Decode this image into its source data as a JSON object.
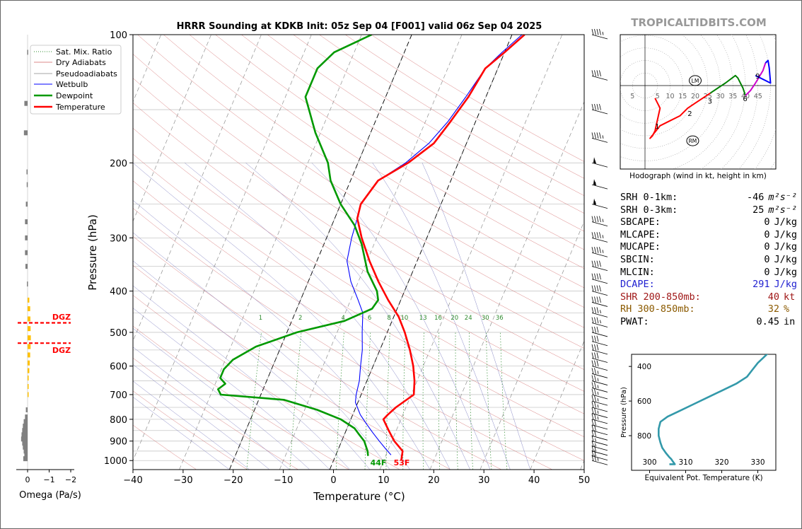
{
  "title": "HRRR Sounding at KDKB Init: 05z Sep 04 [F001] valid 06z Sep 04 2025",
  "site": "TROPICALTIDBITS.COM",
  "main": {
    "xlabel": "Temperature (°C)",
    "ylabel": "Pressure (hPa)",
    "xlim": [
      -40,
      50
    ],
    "ylim": [
      1050,
      100
    ],
    "xticks": [
      "−40",
      "−30",
      "−20",
      "−10",
      "0",
      "10",
      "20",
      "30",
      "40",
      "50"
    ],
    "yticks": [
      "1000",
      "900",
      "800",
      "700",
      "600",
      "500",
      "400",
      "300",
      "200",
      "100"
    ],
    "mixing_ratio_labels": [
      "1",
      "2",
      "4",
      "6",
      "8",
      "10",
      "13",
      "16",
      "20",
      "24",
      "30",
      "36"
    ],
    "sfc_dewpoint_label": "44F",
    "sfc_temp_label": "53F",
    "legend": [
      "Sat. Mix. Ratio",
      "Dry Adiabats",
      "Pseudoadiabats",
      "Wetbulb",
      "Dewpoint",
      "Temperature"
    ],
    "colors": {
      "temperature": "#ff0000",
      "dewpoint": "#009900",
      "wetbulb": "#0000ff",
      "dry_adiabat": "#d06060",
      "moist_adiabat": "#6a6ab8",
      "mixing_ratio": "#2e8b2e",
      "dgz": "#ff0000",
      "omega_up": "#ffc000",
      "omega_down": "#808080"
    }
  },
  "omega": {
    "xlabel": "Omega (Pa/s)",
    "xticks": [
      "0",
      "−1",
      "−2"
    ],
    "dgz_label": "DGZ"
  },
  "hodograph": {
    "caption": "Hodograph (wind in kt, height in km)",
    "ring_labels": [
      "5",
      "5",
      "10",
      "15",
      "20",
      "25",
      "30",
      "35",
      "40",
      "45"
    ],
    "height_labels": [
      "1",
      "2",
      "3",
      "6",
      "9"
    ],
    "lm_label": "LM",
    "rm_label": "RM"
  },
  "theta_e": {
    "xlabel": "Equivalent Pot. Temperature (K)",
    "ylabel": "Pressure (hPa)",
    "xticks": [
      "300",
      "310",
      "320",
      "330"
    ],
    "yticks": [
      "400",
      "600",
      "800"
    ]
  },
  "stats": [
    {
      "label": "SRH 0-1km:",
      "value": "-46",
      "unit": "m²s⁻²",
      "color": "#000000"
    },
    {
      "label": "SRH 0-3km:",
      "value": "25",
      "unit": "m²s⁻²",
      "color": "#000000"
    },
    {
      "label": "SBCAPE:",
      "value": "0",
      "unit": "J/kg",
      "color": "#000000"
    },
    {
      "label": "MLCAPE:",
      "value": "0",
      "unit": "J/kg",
      "color": "#000000"
    },
    {
      "label": "MUCAPE:",
      "value": "0",
      "unit": "J/kg",
      "color": "#000000"
    },
    {
      "label": "SBCIN:",
      "value": "0",
      "unit": "J/kg",
      "color": "#000000"
    },
    {
      "label": "MLCIN:",
      "value": "0",
      "unit": "J/kg",
      "color": "#000000"
    },
    {
      "label": "DCAPE:",
      "value": "291",
      "unit": "J/kg",
      "color": "#1f1fd0"
    },
    {
      "label": "SHR 200-850mb:",
      "value": "40",
      "unit": "kt",
      "color": "#a01818"
    },
    {
      "label": "RH 300-850mb:",
      "value": "32",
      "unit": "%",
      "color": "#8b5a00"
    },
    {
      "label": "PWAT:",
      "value": "0.45",
      "unit": "in",
      "color": "#000000"
    }
  ],
  "chart_data": [
    {
      "type": "line",
      "name": "skew-t",
      "xlim": [
        -40,
        50
      ],
      "ylim": [
        1050,
        100
      ],
      "y_scale": "log",
      "series": [
        {
          "name": "Temperature",
          "points": [
            [
              13.5,
              1000
            ],
            [
              13.0,
              950
            ],
            [
              10.5,
              900
            ],
            [
              8.5,
              850
            ],
            [
              6.5,
              800
            ],
            [
              7.0,
              780
            ],
            [
              8.0,
              750
            ],
            [
              10.5,
              700
            ],
            [
              9.5,
              650
            ],
            [
              8.0,
              600
            ],
            [
              6.0,
              550
            ],
            [
              3.5,
              500
            ],
            [
              1.0,
              460
            ],
            [
              -2.5,
              420
            ],
            [
              -6.0,
              380
            ],
            [
              -9.5,
              340
            ],
            [
              -13.0,
              300
            ],
            [
              -15.5,
              270
            ],
            [
              -16.0,
              250
            ],
            [
              -14.5,
              220
            ],
            [
              -10.0,
              200
            ],
            [
              -6.5,
              180
            ],
            [
              -5.0,
              160
            ],
            [
              -3.5,
              140
            ],
            [
              -2.5,
              120
            ],
            [
              0.0,
              110
            ],
            [
              2.5,
              100
            ]
          ]
        },
        {
          "name": "Dewpoint",
          "points": [
            [
              6.5,
              975
            ],
            [
              6.0,
              950
            ],
            [
              4.5,
              900
            ],
            [
              3.0,
              870
            ],
            [
              1.5,
              840
            ],
            [
              -2.0,
              800
            ],
            [
              -7.5,
              760
            ],
            [
              -15.0,
              720
            ],
            [
              -28.0,
              700
            ],
            [
              -29.0,
              680
            ],
            [
              -28.0,
              660
            ],
            [
              -29.5,
              640
            ],
            [
              -29.5,
              610
            ],
            [
              -28.5,
              580
            ],
            [
              -25.0,
              540
            ],
            [
              -18.0,
              500
            ],
            [
              -9.5,
              470
            ],
            [
              -5.0,
              440
            ],
            [
              -4.5,
              420
            ],
            [
              -5.5,
              400
            ],
            [
              -9.0,
              360
            ],
            [
              -12.5,
              310
            ],
            [
              -15.5,
              280
            ],
            [
              -20.0,
              250
            ],
            [
              -24.0,
              220
            ],
            [
              -26.0,
              200
            ],
            [
              -31.0,
              170
            ],
            [
              -36.0,
              140
            ],
            [
              -36.0,
              120
            ],
            [
              -34.0,
              110
            ],
            [
              -28.0,
              100
            ]
          ]
        },
        {
          "name": "Wetbulb",
          "points": [
            [
              11.0,
              970
            ],
            [
              9.5,
              940
            ],
            [
              7.5,
              900
            ],
            [
              5.5,
              860
            ],
            [
              3.5,
              820
            ],
            [
              1.5,
              780
            ],
            [
              -0.5,
              730
            ],
            [
              -1.0,
              700
            ],
            [
              -1.5,
              650
            ],
            [
              -2.5,
              600
            ],
            [
              -3.5,
              550
            ],
            [
              -5.0,
              500
            ],
            [
              -6.5,
              450
            ],
            [
              -8.5,
              420
            ],
            [
              -11.5,
              380
            ],
            [
              -14.0,
              340
            ],
            [
              -15.0,
              300
            ],
            [
              -15.5,
              270
            ],
            [
              -16.0,
              250
            ],
            [
              -14.5,
              220
            ],
            [
              -10.5,
              200
            ],
            [
              -7.5,
              180
            ],
            [
              -5.5,
              160
            ],
            [
              -4.0,
              140
            ],
            [
              -2.5,
              120
            ],
            [
              -0.5,
              110
            ],
            [
              2.0,
              100
            ]
          ]
        }
      ]
    },
    {
      "type": "bar",
      "name": "omega",
      "xlim": [
        0.3,
        -2.2
      ],
      "series": [
        {
          "name": "Omega",
          "points": [
            [
              0.2,
              990
            ],
            [
              0.15,
              970
            ],
            [
              0.18,
              950
            ],
            [
              0.22,
              930
            ],
            [
              0.25,
              910
            ],
            [
              0.3,
              890
            ],
            [
              0.28,
              870
            ],
            [
              0.25,
              850
            ],
            [
              0.22,
              830
            ],
            [
              0.18,
              810
            ],
            [
              0.12,
              790
            ],
            [
              0.08,
              760
            ],
            [
              -0.02,
              700
            ],
            [
              -0.03,
              670
            ],
            [
              -0.05,
              640
            ],
            [
              -0.08,
              615
            ],
            [
              -0.1,
              590
            ],
            [
              -0.12,
              565
            ],
            [
              -0.14,
              540
            ],
            [
              -0.15,
              515
            ],
            [
              -0.14,
              490
            ],
            [
              -0.13,
              465
            ],
            [
              -0.12,
              440
            ],
            [
              -0.08,
              420
            ],
            [
              0.03,
              385
            ],
            [
              0.1,
              350
            ],
            [
              0.12,
              325
            ],
            [
              0.12,
              300
            ],
            [
              0.12,
              275
            ],
            [
              0.08,
              250
            ],
            [
              0.04,
              225
            ],
            [
              0.05,
              210
            ],
            [
              0.17,
              170
            ],
            [
              0.15,
              145
            ],
            [
              0.02,
              110
            ]
          ]
        }
      ],
      "dgz": [
        475,
        530
      ]
    },
    {
      "type": "line",
      "name": "hodograph",
      "xlim": [
        -5,
        48
      ],
      "ylim": [
        -33,
        20
      ],
      "series": [
        {
          "name": "0-3km",
          "color": "#ff0000",
          "points": [
            [
              4,
              -5
            ],
            [
              6,
              -9
            ],
            [
              4,
              -18
            ],
            [
              3,
              -20
            ],
            [
              2,
              -21
            ],
            [
              6,
              -16
            ],
            [
              10,
              -14
            ],
            [
              14,
              -12
            ],
            [
              17,
              -9
            ],
            [
              20,
              -7
            ],
            [
              23,
              -5
            ],
            [
              26,
              -3
            ]
          ]
        },
        {
          "name": "3-6km",
          "color": "#008000",
          "points": [
            [
              26,
              -3
            ],
            [
              29,
              -1
            ],
            [
              32,
              1
            ],
            [
              36,
              4
            ],
            [
              37,
              3
            ],
            [
              39,
              -1
            ],
            [
              40,
              -4
            ]
          ]
        },
        {
          "name": "6-9km",
          "color": "#cc00cc",
          "points": [
            [
              40,
              -4
            ],
            [
              42,
              -2
            ],
            [
              44,
              1
            ],
            [
              47,
              6
            ],
            [
              48,
              9
            ]
          ]
        },
        {
          "name": "9+km",
          "color": "#0000ff",
          "points": [
            [
              48,
              9
            ],
            [
              49,
              10
            ],
            [
              49.5,
              7
            ],
            [
              50,
              1
            ],
            [
              48,
              2
            ],
            [
              44,
              4
            ]
          ]
        }
      ],
      "storm_motion": {
        "LM": [
          20,
          2
        ],
        "RM": [
          19,
          -22
        ]
      },
      "height_points": {
        "1": [
          6,
          -16
        ],
        "2": [
          19,
          -11
        ],
        "3": [
          27,
          -6
        ],
        "6": [
          41,
          -5
        ],
        "9": [
          46,
          4
        ]
      }
    },
    {
      "type": "line",
      "name": "theta-e",
      "xlim": [
        295,
        335
      ],
      "ylim": [
        1000,
        300
      ],
      "series": [
        {
          "name": "Theta-E",
          "points": [
            [
              305.5,
              965
            ],
            [
              307.0,
              965
            ],
            [
              306.5,
              950
            ],
            [
              306.0,
              935
            ],
            [
              305.5,
              925
            ],
            [
              304.5,
              900
            ],
            [
              303.5,
              870
            ],
            [
              303.0,
              840
            ],
            [
              302.5,
              800
            ],
            [
              302.5,
              760
            ],
            [
              303.0,
              720
            ],
            [
              305.0,
              690
            ],
            [
              308.0,
              660
            ],
            [
              312.0,
              620
            ],
            [
              316.0,
              580
            ],
            [
              320.0,
              540
            ],
            [
              324.0,
              500
            ],
            [
              327.0,
              460
            ],
            [
              328.5,
              420
            ],
            [
              330.0,
              380
            ],
            [
              331.5,
              350
            ],
            [
              333.0,
              320
            ]
          ]
        }
      ]
    }
  ]
}
